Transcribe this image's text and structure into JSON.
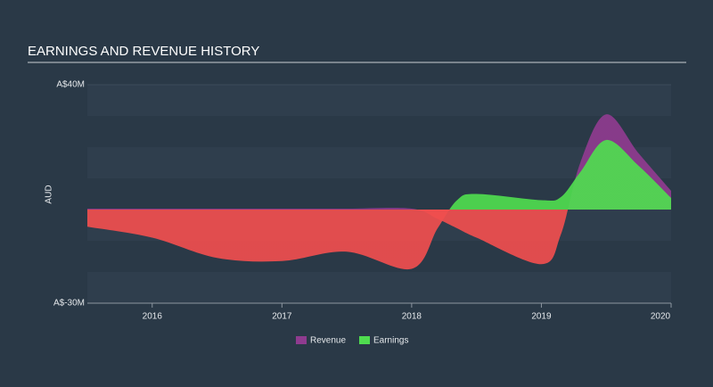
{
  "chart_data": {
    "type": "area",
    "title": "EARNINGS AND REVENUE HISTORY",
    "y_label": "AUD",
    "x": [
      2015.5,
      2016,
      2016.5,
      2017,
      2017.5,
      2018,
      2018.2,
      2018.35,
      2018.5,
      2019,
      2019.15,
      2019.3,
      2019.5,
      2019.75,
      2020
    ],
    "series": [
      {
        "name": "Revenue",
        "color": "#8f3b8f",
        "values": [
          0.3,
          0.3,
          0.3,
          0.3,
          0.3,
          0.3,
          -3,
          -6,
          -9,
          -17.5,
          -8,
          15,
          30.5,
          18,
          6
        ]
      },
      {
        "name": "Earnings",
        "color": "#4fdc4f",
        "values": [
          -5.5,
          -9,
          -15.5,
          -16.5,
          -13.5,
          -19,
          -6,
          3,
          5,
          3,
          4,
          12,
          22.3,
          14,
          3.7
        ]
      }
    ],
    "negative_color": "#f04e4e",
    "xlim": [
      2015.5,
      2020
    ],
    "xticks": [
      2016,
      2017,
      2018,
      2019,
      2020
    ],
    "ylim": [
      -30,
      40
    ],
    "yticks": [
      {
        "value": 40,
        "label": "A$40M"
      },
      {
        "value": -30,
        "label": "A$-30M"
      }
    ],
    "legend": "bottom"
  }
}
